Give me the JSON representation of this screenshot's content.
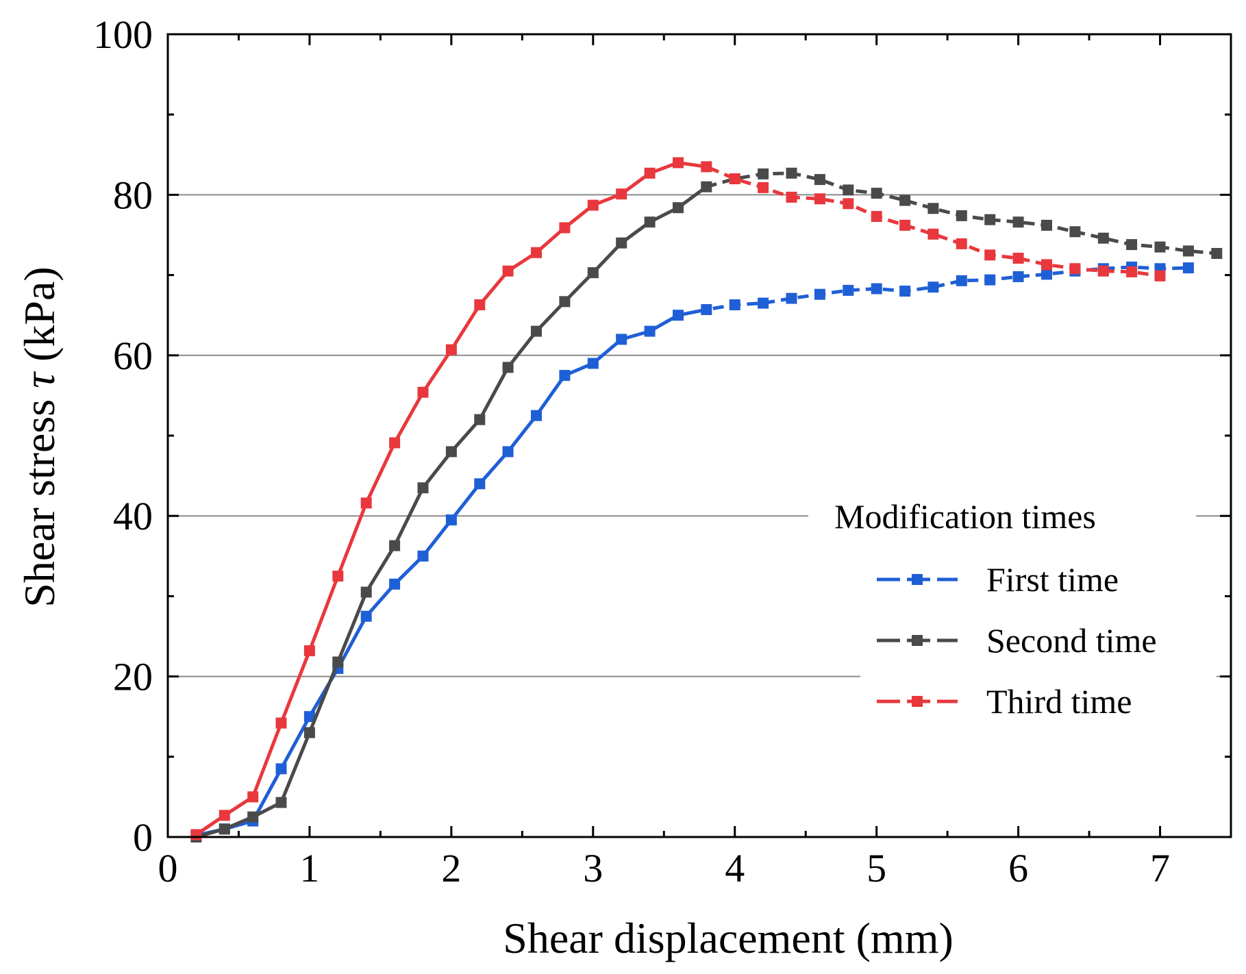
{
  "chart_data": {
    "type": "line",
    "xlabel": "Shear displacement (mm)",
    "ylabel_main": "Shear stress ",
    "ylabel_symbol": "τ",
    "ylabel_unit": " (kPa)",
    "xlim": [
      0,
      7.5
    ],
    "ylim": [
      0,
      100
    ],
    "xticks": [
      0,
      1,
      2,
      3,
      4,
      5,
      6,
      7
    ],
    "yticks": [
      0,
      20,
      40,
      60,
      80,
      100
    ],
    "grid": "horizontal",
    "legend": {
      "title": "Modification times",
      "placement": "lower-right"
    },
    "series": [
      {
        "name": "First time",
        "color": "#1f5fd6",
        "x": [
          0.2,
          0.4,
          0.6,
          0.8,
          1.0,
          1.2,
          1.4,
          1.6,
          1.8,
          2.0,
          2.2,
          2.4,
          2.6,
          2.8,
          3.0,
          3.2,
          3.4,
          3.6,
          3.8,
          4.0,
          4.2,
          4.4,
          4.6,
          4.8,
          5.0,
          5.2,
          5.4,
          5.6,
          5.8,
          6.0,
          6.2,
          6.4,
          6.6,
          6.8,
          7.0,
          7.2
        ],
        "y": [
          0.2,
          1.0,
          2.0,
          8.5,
          15.0,
          21.0,
          27.5,
          31.5,
          35.0,
          39.5,
          44.0,
          48.0,
          52.5,
          57.5,
          59.0,
          62.0,
          63.0,
          65.0,
          65.7,
          66.3,
          66.5,
          67.1,
          67.6,
          68.1,
          68.3,
          68.0,
          68.5,
          69.3,
          69.4,
          69.8,
          70.1,
          70.5,
          70.8,
          71.0,
          70.8,
          70.9
        ]
      },
      {
        "name": "Second time",
        "color": "#4a4a4a",
        "x": [
          0.2,
          0.4,
          0.6,
          0.8,
          1.0,
          1.2,
          1.4,
          1.6,
          1.8,
          2.0,
          2.2,
          2.4,
          2.6,
          2.8,
          3.0,
          3.2,
          3.4,
          3.6,
          3.8,
          4.0,
          4.2,
          4.4,
          4.6,
          4.8,
          5.0,
          5.2,
          5.4,
          5.6,
          5.8,
          6.0,
          6.2,
          6.4,
          6.6,
          6.8,
          7.0,
          7.2,
          7.4
        ],
        "y": [
          0.0,
          1.0,
          2.5,
          4.3,
          13.0,
          21.8,
          30.5,
          36.3,
          43.5,
          48.0,
          52.0,
          58.5,
          63.0,
          66.7,
          70.3,
          74.0,
          76.6,
          78.4,
          81.0,
          82.0,
          82.6,
          82.7,
          81.9,
          80.6,
          80.2,
          79.3,
          78.3,
          77.4,
          76.9,
          76.6,
          76.2,
          75.4,
          74.6,
          73.8,
          73.5,
          73.0,
          72.7
        ]
      },
      {
        "name": "Third time",
        "color": "#e8383d",
        "x": [
          0.2,
          0.4,
          0.6,
          0.8,
          1.0,
          1.2,
          1.4,
          1.6,
          1.8,
          2.0,
          2.2,
          2.4,
          2.6,
          2.8,
          3.0,
          3.2,
          3.4,
          3.6,
          3.8,
          4.0,
          4.2,
          4.4,
          4.6,
          4.8,
          5.0,
          5.2,
          5.4,
          5.6,
          5.8,
          6.0,
          6.2,
          6.4,
          6.6,
          6.8,
          7.0
        ],
        "y": [
          0.3,
          2.7,
          5.0,
          14.2,
          23.2,
          32.5,
          41.6,
          49.1,
          55.4,
          60.7,
          66.3,
          70.5,
          72.8,
          75.9,
          78.7,
          80.1,
          82.7,
          84.0,
          83.5,
          82.0,
          80.9,
          79.7,
          79.5,
          78.9,
          77.3,
          76.2,
          75.1,
          73.9,
          72.5,
          72.1,
          71.3,
          70.8,
          70.5,
          70.4,
          69.9
        ]
      }
    ]
  }
}
